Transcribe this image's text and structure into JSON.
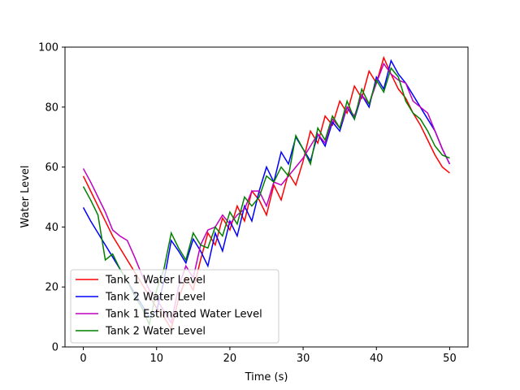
{
  "chart_data": {
    "type": "line",
    "title": "",
    "xlabel": "Time (s)",
    "ylabel": "Water Level",
    "xlim": [
      -2.5,
      52.5
    ],
    "ylim": [
      0,
      100
    ],
    "xticks": [
      0,
      10,
      20,
      30,
      40,
      50
    ],
    "yticks": [
      0,
      20,
      40,
      60,
      80,
      100
    ],
    "grid": false,
    "legend_position": "lower-left",
    "series": [
      {
        "name": "Tank 1 Water Level",
        "color": "#ff0000",
        "x": [
          0,
          1,
          2,
          3,
          4,
          5,
          6,
          7,
          8,
          9,
          10,
          11,
          12,
          13,
          14,
          15,
          16,
          17,
          18,
          19,
          20,
          21,
          22,
          23,
          24,
          25,
          26,
          27,
          28,
          29,
          30,
          31,
          32,
          33,
          34,
          35,
          36,
          37,
          38,
          39,
          40,
          41,
          42,
          43,
          44,
          45,
          46,
          47,
          48,
          49,
          50
        ],
        "y": [
          57,
          52,
          47,
          42,
          37,
          33,
          29,
          25,
          21,
          17,
          13,
          10,
          6,
          16,
          23,
          19,
          29,
          38,
          34,
          43,
          39,
          47,
          42,
          52,
          49,
          44,
          54,
          49,
          58,
          54,
          62,
          72,
          68,
          77,
          74,
          82,
          78,
          87,
          83,
          92,
          88,
          96.5,
          91,
          86,
          83,
          78,
          74,
          69,
          64,
          60,
          58
        ]
      },
      {
        "name": "Tank 2 Water Level",
        "color": "#0000ff",
        "x": [
          0,
          1,
          2,
          3,
          4,
          5,
          6,
          7,
          8,
          9,
          10,
          11,
          12,
          13,
          14,
          15,
          16,
          17,
          18,
          19,
          20,
          21,
          22,
          23,
          24,
          25,
          26,
          27,
          28,
          29,
          30,
          31,
          32,
          33,
          34,
          35,
          36,
          37,
          38,
          39,
          40,
          41,
          42,
          43,
          44,
          45,
          46,
          47,
          48,
          49,
          50
        ],
        "y": [
          46.5,
          42,
          38,
          34,
          30,
          26,
          22,
          18,
          14,
          10,
          12,
          22,
          35.5,
          32,
          28,
          36,
          32,
          27,
          38,
          32,
          42,
          37,
          47,
          42,
          52,
          60,
          55,
          65,
          61,
          70,
          66,
          62,
          71,
          67,
          75,
          72,
          80,
          76,
          84,
          80,
          90,
          86,
          95.5,
          91,
          88,
          84,
          80,
          76,
          72,
          66,
          61
        ]
      },
      {
        "name": "Tank 1 Estimated Water Level",
        "color": "#bf00bf",
        "x": [
          0,
          1,
          2,
          3,
          4,
          5,
          6,
          7,
          8,
          9,
          10,
          11,
          12,
          13,
          14,
          15,
          16,
          17,
          18,
          19,
          20,
          21,
          22,
          23,
          24,
          25,
          26,
          27,
          28,
          29,
          30,
          31,
          32,
          33,
          34,
          35,
          36,
          37,
          38,
          39,
          40,
          41,
          42,
          43,
          44,
          45,
          46,
          47,
          48,
          49,
          50
        ],
        "y": [
          59.5,
          55,
          50,
          45,
          39,
          37,
          35.5,
          30,
          24,
          19,
          16,
          12,
          8,
          20,
          27,
          23,
          34,
          39,
          40,
          44,
          41,
          44,
          46,
          52,
          52,
          47,
          55,
          54,
          57,
          60,
          63,
          67,
          71,
          68,
          76,
          73,
          80,
          77,
          84,
          81,
          88,
          94.5,
          91,
          89,
          88,
          82,
          80,
          78,
          72,
          66,
          61
        ]
      },
      {
        "name": "Tank 2 Water Level",
        "color": "#008000",
        "x": [
          0,
          1,
          2,
          3,
          4,
          5,
          6,
          7,
          8,
          9,
          10,
          11,
          12,
          13,
          14,
          15,
          16,
          17,
          18,
          19,
          20,
          21,
          22,
          23,
          24,
          25,
          26,
          27,
          28,
          29,
          30,
          31,
          32,
          33,
          34,
          35,
          36,
          37,
          38,
          39,
          40,
          41,
          42,
          43,
          44,
          45,
          46,
          47,
          48,
          49,
          50
        ],
        "y": [
          53.5,
          49,
          44,
          29,
          31,
          26,
          22,
          17,
          13,
          7.5,
          19,
          26,
          38,
          33,
          29,
          38,
          34,
          33,
          40,
          37,
          45,
          41,
          50,
          47,
          50,
          57,
          55,
          60,
          57,
          70.5,
          66,
          61,
          73,
          69,
          77,
          73,
          82,
          76,
          86,
          81,
          89,
          85,
          93,
          90,
          82,
          78,
          76,
          72,
          67,
          64,
          63
        ]
      }
    ]
  }
}
